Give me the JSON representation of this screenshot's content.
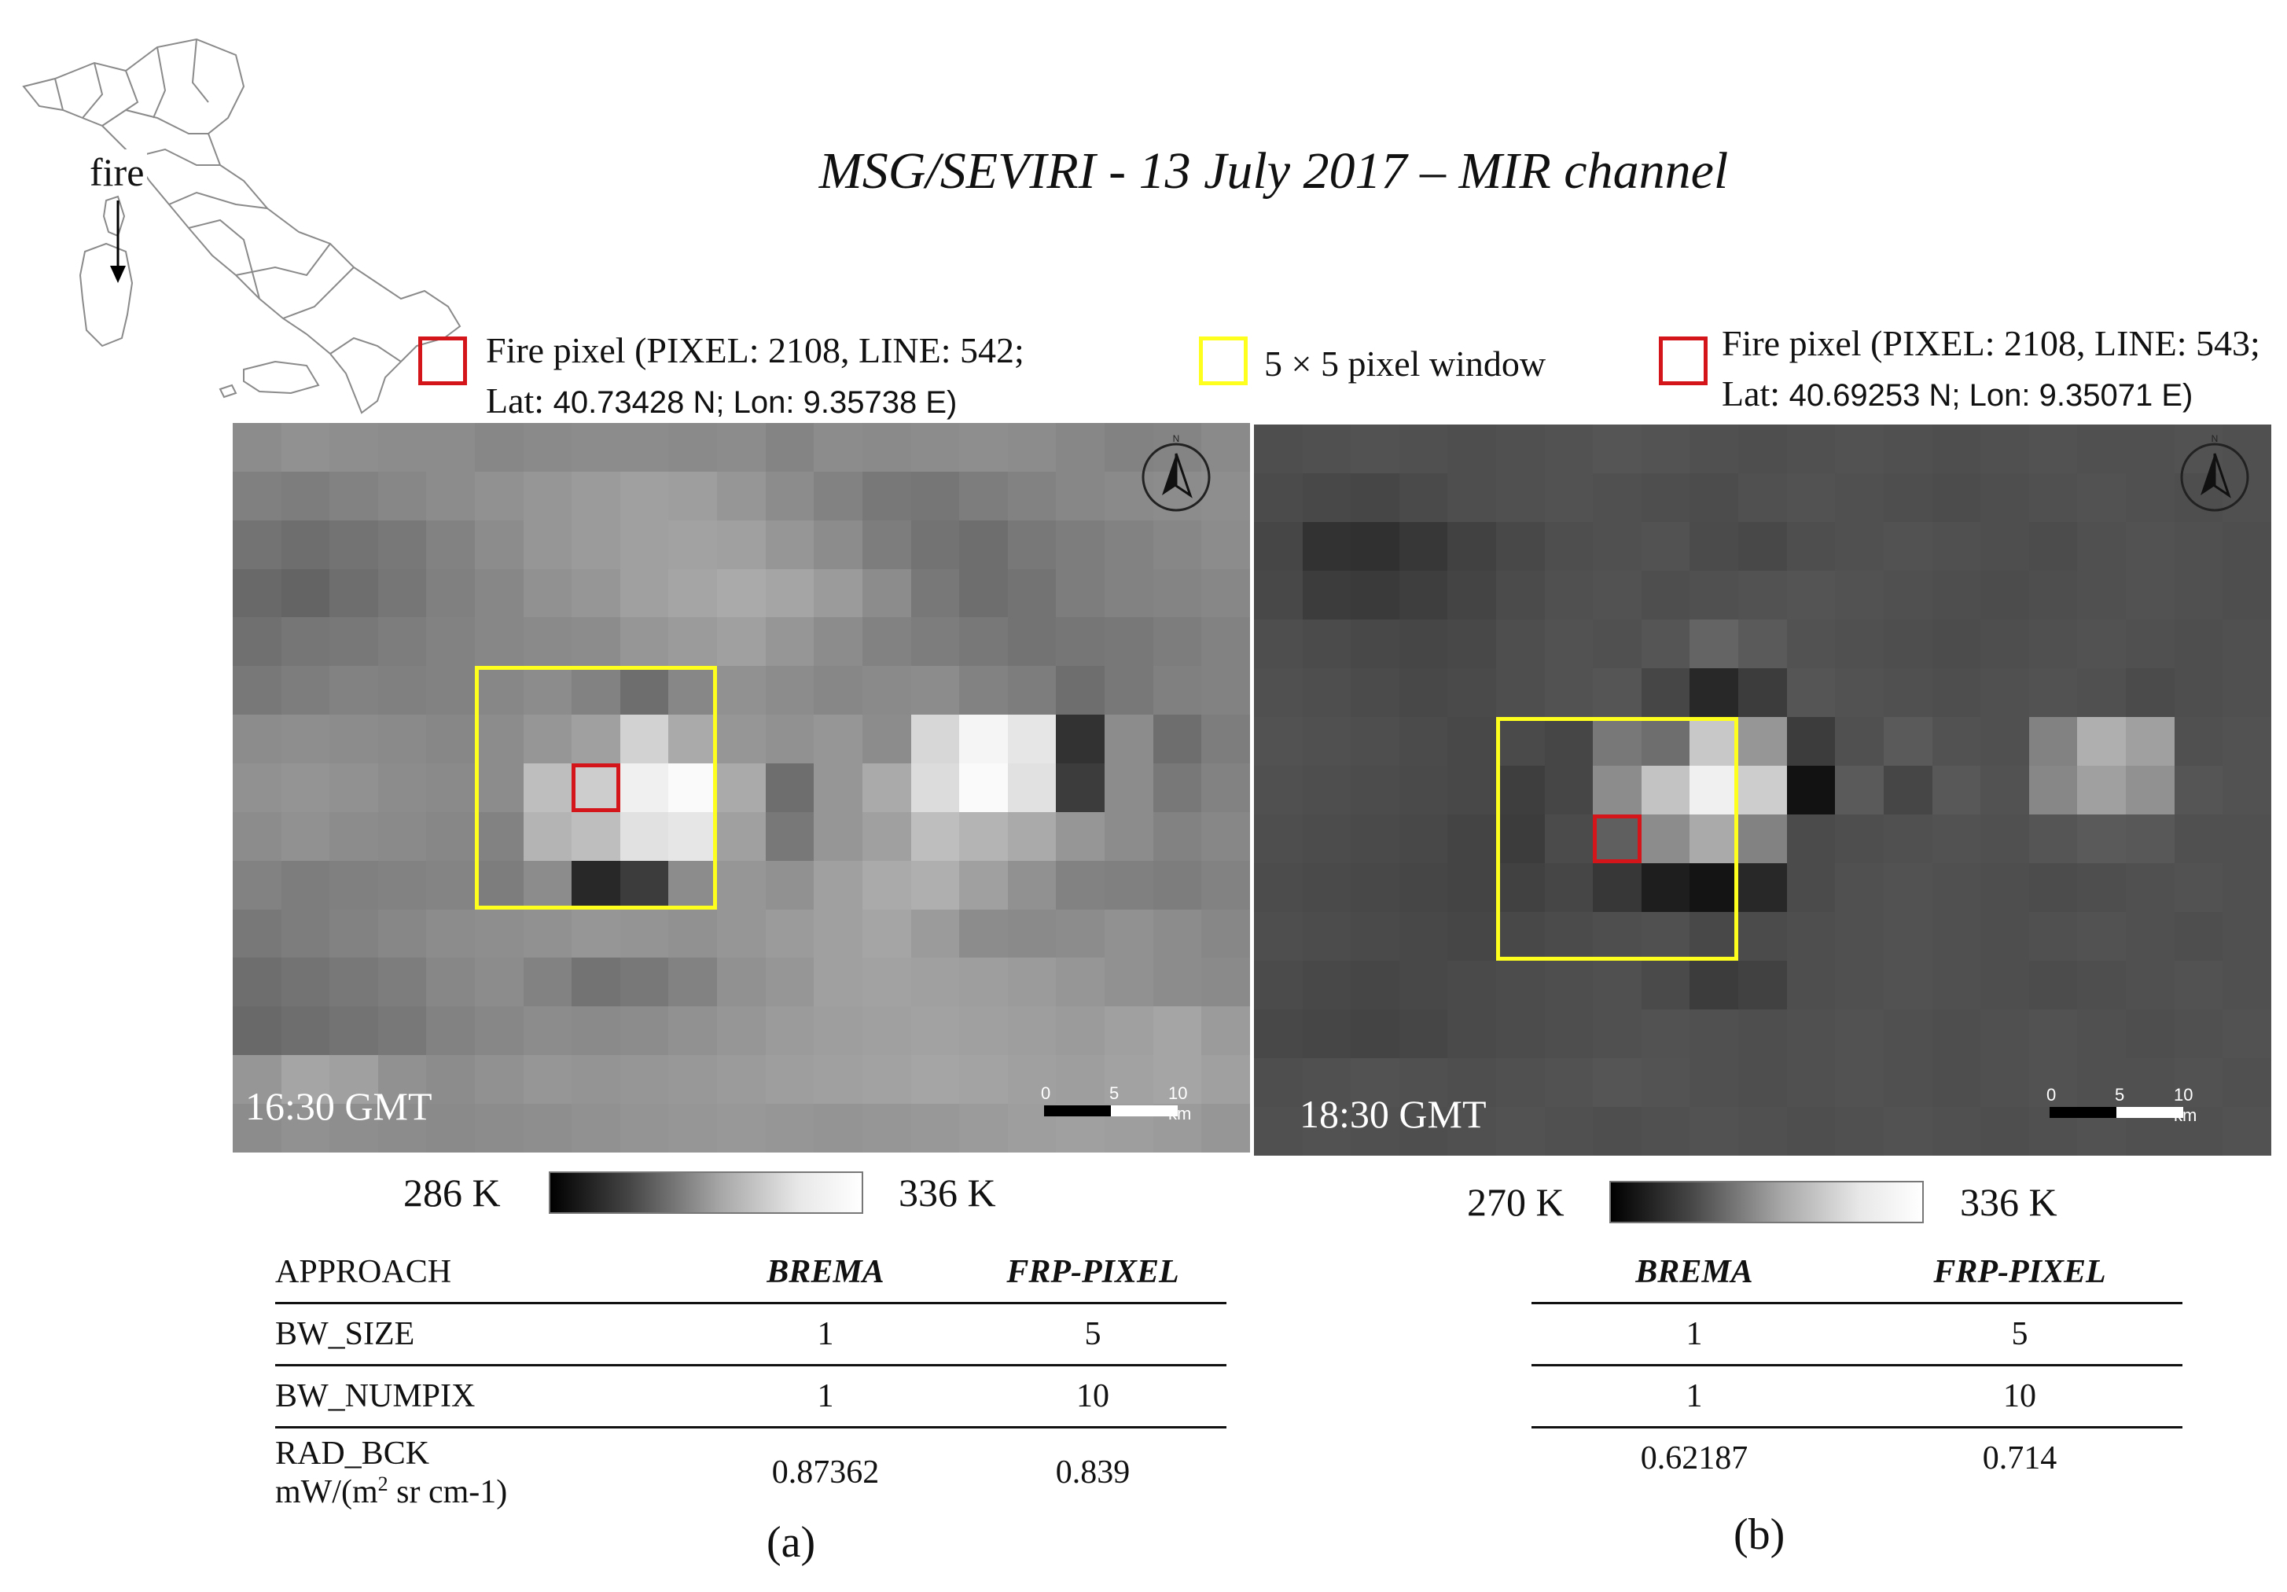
{
  "inset_map": {
    "fire_label": "fire"
  },
  "title": "MSG/SEVIRI - 13 July 2017 – MIR channel",
  "legend": {
    "left_fire_line1": "Fire pixel (PIXEL: 2108, LINE: 542;",
    "left_fire_line2_prefix": "Lat: ",
    "left_fire_line2_lat": "40.73428",
    "left_fire_line2_mid": " N; Lon: ",
    "left_fire_line2_lon": "9.35738",
    "left_fire_line2_suffix": " E)",
    "window_label": "5 × 5 pixel window",
    "right_fire_line1": "Fire pixel (PIXEL: 2108, LINE: 543;",
    "right_fire_line2_prefix": "Lat: ",
    "right_fire_line2_lat": "40.69253",
    "right_fire_line2_mid": " N; Lon: ",
    "right_fire_line2_lon": "9.35071",
    "right_fire_line2_suffix": " E)",
    "fire_color": "#d4161a",
    "window_color": "#ffff1e"
  },
  "panel_a": {
    "time": "16:30 GMT",
    "scale": {
      "t0": "0",
      "t5": "5",
      "t10": "10 km"
    },
    "colorbar": {
      "min": "286 K",
      "max": "336 K"
    },
    "grid": [
      [
        140,
        145,
        142,
        140,
        140,
        135,
        138,
        140,
        140,
        138,
        140,
        132,
        140,
        138,
        140,
        142,
        140,
        135,
        130,
        132,
        138
      ],
      [
        128,
        125,
        130,
        135,
        140,
        145,
        150,
        155,
        160,
        158,
        150,
        140,
        130,
        120,
        118,
        125,
        130,
        135,
        138,
        140,
        142
      ],
      [
        115,
        110,
        115,
        120,
        130,
        140,
        150,
        155,
        160,
        162,
        160,
        150,
        140,
        125,
        115,
        110,
        120,
        125,
        130,
        135,
        140
      ],
      [
        105,
        100,
        110,
        118,
        128,
        135,
        145,
        150,
        160,
        165,
        170,
        165,
        155,
        140,
        120,
        110,
        115,
        125,
        130,
        132,
        135
      ],
      [
        112,
        118,
        120,
        125,
        130,
        135,
        138,
        140,
        150,
        155,
        160,
        150,
        140,
        130,
        125,
        120,
        115,
        118,
        120,
        125,
        130
      ],
      [
        120,
        125,
        130,
        128,
        130,
        135,
        140,
        130,
        110,
        135,
        145,
        140,
        135,
        138,
        140,
        130,
        125,
        110,
        120,
        128,
        130
      ],
      [
        140,
        142,
        140,
        138,
        135,
        140,
        150,
        160,
        210,
        170,
        150,
        145,
        150,
        140,
        215,
        245,
        230,
        50,
        140,
        110,
        125
      ],
      [
        145,
        148,
        145,
        140,
        138,
        140,
        190,
        205,
        240,
        250,
        170,
        110,
        150,
        170,
        220,
        250,
        225,
        60,
        140,
        120,
        130
      ],
      [
        140,
        145,
        140,
        138,
        135,
        130,
        180,
        190,
        225,
        230,
        160,
        120,
        150,
        160,
        190,
        180,
        170,
        150,
        140,
        130,
        135
      ],
      [
        130,
        125,
        128,
        130,
        132,
        125,
        140,
        40,
        60,
        140,
        150,
        145,
        160,
        170,
        175,
        160,
        145,
        130,
        128,
        125,
        130
      ],
      [
        120,
        125,
        130,
        135,
        140,
        142,
        145,
        150,
        148,
        145,
        150,
        155,
        160,
        165,
        155,
        140,
        138,
        140,
        145,
        140,
        135
      ],
      [
        110,
        115,
        120,
        125,
        135,
        140,
        130,
        115,
        120,
        130,
        145,
        150,
        160,
        162,
        160,
        158,
        155,
        150,
        145,
        140,
        138
      ],
      [
        105,
        110,
        115,
        120,
        130,
        135,
        140,
        138,
        140,
        145,
        150,
        155,
        158,
        160,
        162,
        160,
        158,
        155,
        160,
        165,
        155
      ],
      [
        150,
        165,
        160,
        145,
        140,
        145,
        150,
        148,
        150,
        152,
        155,
        158,
        160,
        162,
        165,
        163,
        160,
        158,
        162,
        165,
        160
      ],
      [
        140,
        145,
        142,
        140,
        138,
        140,
        142,
        145,
        148,
        150,
        152,
        150,
        148,
        150,
        152,
        155,
        158,
        160,
        158,
        155,
        150
      ]
    ],
    "yellow_window": {
      "col": 5,
      "row": 5,
      "size": 5
    },
    "red_pixel": {
      "col": 7,
      "row": 7
    }
  },
  "panel_b": {
    "time": "18:30 GMT",
    "scale": {
      "t0": "0",
      "t5": "5",
      "t10": "10 km"
    },
    "colorbar": {
      "min": "270 K",
      "max": "336 K"
    },
    "grid": [
      [
        78,
        80,
        82,
        80,
        78,
        80,
        82,
        85,
        83,
        80,
        78,
        80,
        82,
        80,
        78,
        80,
        82,
        80,
        80,
        82,
        80
      ],
      [
        75,
        72,
        70,
        74,
        78,
        80,
        82,
        80,
        78,
        76,
        80,
        82,
        80,
        78,
        76,
        78,
        80,
        82,
        80,
        78,
        80
      ],
      [
        70,
        50,
        48,
        55,
        65,
        72,
        78,
        80,
        82,
        75,
        72,
        78,
        80,
        82,
        80,
        78,
        76,
        80,
        82,
        80,
        78
      ],
      [
        72,
        60,
        58,
        62,
        68,
        75,
        80,
        82,
        78,
        80,
        82,
        84,
        82,
        80,
        78,
        76,
        78,
        80,
        82,
        80,
        78
      ],
      [
        78,
        75,
        72,
        70,
        72,
        78,
        82,
        80,
        85,
        100,
        90,
        82,
        80,
        78,
        76,
        78,
        80,
        82,
        80,
        78,
        80
      ],
      [
        80,
        78,
        75,
        72,
        74,
        78,
        82,
        85,
        70,
        40,
        60,
        85,
        82,
        80,
        78,
        80,
        82,
        80,
        75,
        78,
        80
      ],
      [
        82,
        80,
        78,
        75,
        72,
        74,
        70,
        120,
        110,
        200,
        150,
        60,
        80,
        90,
        82,
        80,
        130,
        175,
        160,
        80,
        82
      ],
      [
        80,
        78,
        76,
        74,
        72,
        62,
        70,
        140,
        195,
        240,
        205,
        18,
        90,
        70,
        88,
        82,
        135,
        160,
        145,
        85,
        82
      ],
      [
        78,
        76,
        74,
        72,
        68,
        60,
        75,
        95,
        140,
        170,
        130,
        75,
        78,
        80,
        82,
        80,
        85,
        90,
        88,
        80,
        80
      ],
      [
        76,
        74,
        72,
        70,
        68,
        65,
        70,
        55,
        30,
        20,
        40,
        75,
        80,
        82,
        80,
        78,
        76,
        78,
        80,
        82,
        80
      ],
      [
        78,
        76,
        74,
        72,
        70,
        72,
        75,
        78,
        80,
        72,
        75,
        78,
        80,
        82,
        80,
        78,
        80,
        82,
        80,
        78,
        80
      ],
      [
        75,
        72,
        70,
        72,
        74,
        76,
        78,
        80,
        74,
        60,
        65,
        78,
        80,
        82,
        80,
        78,
        76,
        78,
        80,
        82,
        80
      ],
      [
        72,
        70,
        68,
        70,
        74,
        76,
        78,
        80,
        82,
        80,
        78,
        80,
        82,
        80,
        78,
        80,
        82,
        80,
        78,
        80,
        82
      ],
      [
        78,
        80,
        82,
        80,
        78,
        80,
        82,
        85,
        83,
        80,
        78,
        80,
        82,
        80,
        78,
        80,
        82,
        80,
        80,
        82,
        80
      ],
      [
        80,
        82,
        80,
        78,
        80,
        82,
        80,
        78,
        80,
        82,
        80,
        78,
        80,
        82,
        80,
        78,
        80,
        82,
        80,
        80,
        82
      ]
    ],
    "yellow_window": {
      "col": 5,
      "row": 6,
      "size": 5
    },
    "red_pixel": {
      "col": 7,
      "row": 8
    }
  },
  "table_a": {
    "header": {
      "approach": "APPROACH",
      "brema": "BREMA",
      "frp": "FRP-PIXEL"
    },
    "rows": [
      {
        "name": "BW_SIZE",
        "brema": "1",
        "frp": "5"
      },
      {
        "name": "BW_NUMPIX",
        "brema": "1",
        "frp": "10"
      },
      {
        "name": "RAD_BCK",
        "unit_pre": "mW/(m",
        "unit_sup": "2",
        "unit_post": " sr cm-1)",
        "brema": "0.87362",
        "frp": "0.839"
      }
    ]
  },
  "table_b": {
    "header": {
      "brema": "BREMA",
      "frp": "FRP-PIXEL"
    },
    "rows": [
      {
        "brema": "1",
        "frp": "5"
      },
      {
        "brema": "1",
        "frp": "10"
      },
      {
        "brema": "0.62187",
        "frp": "0.714"
      }
    ]
  },
  "captions": {
    "a": "(a)",
    "b": "(b)"
  }
}
